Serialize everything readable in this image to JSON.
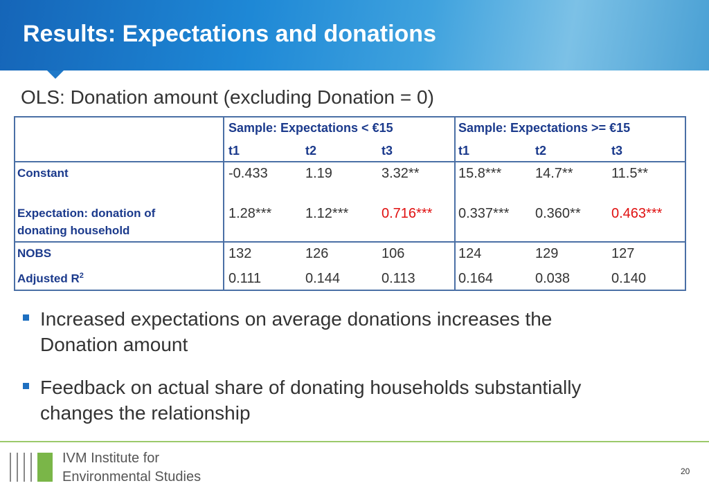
{
  "header": {
    "title": "Results: Expectations and donations"
  },
  "subtitle": "OLS: Donation amount (excluding Donation = 0)",
  "table": {
    "groups": [
      "Sample: Expectations < €15",
      "Sample: Expectations >= €15"
    ],
    "columns": [
      "t1",
      "t2",
      "t3",
      "t1",
      "t2",
      "t3"
    ],
    "rows": [
      {
        "label": "Constant",
        "cells": [
          "-0.433",
          "1.19",
          "3.32**",
          "15.8***",
          "14.7**",
          "11.5**"
        ]
      },
      {
        "label": [
          "Expectation: donation of",
          "donating household"
        ],
        "cells": [
          "1.28***",
          "1.12***",
          "0.716***",
          "0.337***",
          "0.360**",
          "0.463***"
        ]
      },
      {
        "label": "NOBS",
        "cells": [
          "132",
          "126",
          "106",
          "124",
          "129",
          "127"
        ]
      },
      {
        "label": "Adjusted R",
        "label_sup": "2",
        "cells": [
          "0.111",
          "0.144",
          "0.113",
          "0.164",
          "0.038",
          "0.140"
        ]
      }
    ]
  },
  "bullets": [
    [
      "Increased expectations on average donations increases the",
      "Donation amount"
    ],
    [
      "Feedback on actual share of donating households substantially",
      "changes the relationship"
    ]
  ],
  "footer": {
    "logo": [
      "IVM Institute for",
      "Environmental Studies"
    ],
    "page": "20"
  }
}
